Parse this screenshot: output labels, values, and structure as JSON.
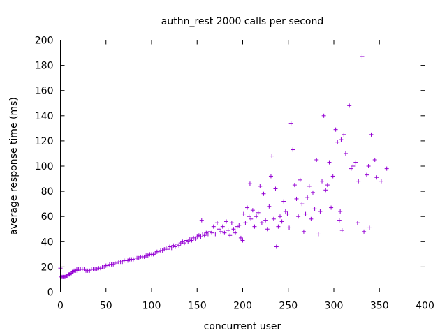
{
  "chart_data": {
    "type": "scatter",
    "title": "authn_rest 2000 calls per second",
    "xlabel": "concurrent user",
    "ylabel": "average response time (ms)",
    "xlim": [
      0,
      400
    ],
    "ylim": [
      0,
      200
    ],
    "xticks": [
      0,
      50,
      100,
      150,
      200,
      250,
      300,
      350,
      400
    ],
    "yticks": [
      0,
      20,
      40,
      60,
      80,
      100,
      120,
      140,
      160,
      180,
      200
    ],
    "grid": false,
    "marker": "+",
    "color": "#9400d3",
    "series": [
      {
        "points": [
          [
            0,
            19
          ],
          [
            1,
            12
          ],
          [
            2,
            12
          ],
          [
            3,
            12
          ],
          [
            4,
            12
          ],
          [
            5,
            12
          ],
          [
            6,
            13
          ],
          [
            7,
            13
          ],
          [
            8,
            13
          ],
          [
            9,
            14
          ],
          [
            10,
            14
          ],
          [
            11,
            15
          ],
          [
            12,
            15
          ],
          [
            13,
            16
          ],
          [
            14,
            16
          ],
          [
            15,
            17
          ],
          [
            16,
            17
          ],
          [
            17,
            17
          ],
          [
            18,
            18
          ],
          [
            19,
            17
          ],
          [
            20,
            18
          ],
          [
            22,
            18
          ],
          [
            24,
            18
          ],
          [
            26,
            18
          ],
          [
            28,
            17
          ],
          [
            30,
            17
          ],
          [
            32,
            17
          ],
          [
            34,
            18
          ],
          [
            36,
            18
          ],
          [
            38,
            18
          ],
          [
            40,
            18
          ],
          [
            42,
            19
          ],
          [
            44,
            19
          ],
          [
            46,
            20
          ],
          [
            48,
            20
          ],
          [
            50,
            21
          ],
          [
            52,
            21
          ],
          [
            54,
            22
          ],
          [
            56,
            22
          ],
          [
            58,
            22
          ],
          [
            60,
            23
          ],
          [
            62,
            23
          ],
          [
            64,
            24
          ],
          [
            66,
            24
          ],
          [
            68,
            24
          ],
          [
            70,
            25
          ],
          [
            72,
            25
          ],
          [
            74,
            25
          ],
          [
            76,
            26
          ],
          [
            78,
            26
          ],
          [
            80,
            26
          ],
          [
            82,
            27
          ],
          [
            84,
            27
          ],
          [
            86,
            27
          ],
          [
            88,
            28
          ],
          [
            90,
            28
          ],
          [
            92,
            28
          ],
          [
            94,
            29
          ],
          [
            96,
            29
          ],
          [
            98,
            30
          ],
          [
            100,
            30
          ],
          [
            102,
            30
          ],
          [
            104,
            31
          ],
          [
            106,
            32
          ],
          [
            108,
            32
          ],
          [
            110,
            33
          ],
          [
            112,
            33
          ],
          [
            114,
            34
          ],
          [
            116,
            35
          ],
          [
            118,
            34
          ],
          [
            120,
            36
          ],
          [
            122,
            35
          ],
          [
            124,
            37
          ],
          [
            126,
            36
          ],
          [
            128,
            38
          ],
          [
            130,
            37
          ],
          [
            132,
            39
          ],
          [
            134,
            40
          ],
          [
            136,
            39
          ],
          [
            138,
            41
          ],
          [
            140,
            40
          ],
          [
            142,
            42
          ],
          [
            144,
            41
          ],
          [
            146,
            43
          ],
          [
            148,
            42
          ],
          [
            150,
            44
          ],
          [
            152,
            45
          ],
          [
            154,
            44
          ],
          [
            155,
            57
          ],
          [
            156,
            46
          ],
          [
            158,
            45
          ],
          [
            160,
            47
          ],
          [
            162,
            46
          ],
          [
            164,
            48
          ],
          [
            166,
            47
          ],
          [
            168,
            52
          ],
          [
            170,
            46
          ],
          [
            172,
            55
          ],
          [
            174,
            50
          ],
          [
            176,
            48
          ],
          [
            178,
            52
          ],
          [
            180,
            47
          ],
          [
            182,
            56
          ],
          [
            184,
            49
          ],
          [
            186,
            45
          ],
          [
            188,
            55
          ],
          [
            190,
            50
          ],
          [
            192,
            47
          ],
          [
            194,
            52
          ],
          [
            196,
            53
          ],
          [
            198,
            43
          ],
          [
            200,
            41
          ],
          [
            201,
            62
          ],
          [
            203,
            55
          ],
          [
            205,
            67
          ],
          [
            207,
            60
          ],
          [
            208,
            86
          ],
          [
            209,
            58
          ],
          [
            211,
            65
          ],
          [
            213,
            52
          ],
          [
            215,
            60
          ],
          [
            217,
            63
          ],
          [
            219,
            84
          ],
          [
            221,
            55
          ],
          [
            223,
            78
          ],
          [
            225,
            57
          ],
          [
            227,
            50
          ],
          [
            229,
            68
          ],
          [
            231,
            92
          ],
          [
            232,
            108
          ],
          [
            234,
            58
          ],
          [
            236,
            82
          ],
          [
            237,
            36
          ],
          [
            239,
            52
          ],
          [
            241,
            60
          ],
          [
            243,
            56
          ],
          [
            245,
            72
          ],
          [
            247,
            64
          ],
          [
            249,
            62
          ],
          [
            251,
            51
          ],
          [
            253,
            134
          ],
          [
            255,
            113
          ],
          [
            257,
            85
          ],
          [
            259,
            74
          ],
          [
            261,
            60
          ],
          [
            263,
            89
          ],
          [
            265,
            70
          ],
          [
            267,
            48
          ],
          [
            269,
            62
          ],
          [
            271,
            75
          ],
          [
            273,
            84
          ],
          [
            275,
            58
          ],
          [
            277,
            79
          ],
          [
            279,
            66
          ],
          [
            281,
            105
          ],
          [
            283,
            46
          ],
          [
            285,
            64
          ],
          [
            287,
            88
          ],
          [
            289,
            140
          ],
          [
            291,
            81
          ],
          [
            293,
            85
          ],
          [
            295,
            103
          ],
          [
            297,
            67
          ],
          [
            299,
            92
          ],
          [
            302,
            129
          ],
          [
            304,
            119
          ],
          [
            306,
            57
          ],
          [
            307,
            64
          ],
          [
            308,
            121
          ],
          [
            309,
            49
          ],
          [
            311,
            125
          ],
          [
            313,
            110
          ],
          [
            317,
            148
          ],
          [
            319,
            98
          ],
          [
            321,
            100
          ],
          [
            324,
            103
          ],
          [
            326,
            55
          ],
          [
            327,
            88
          ],
          [
            331,
            187
          ],
          [
            333,
            48
          ],
          [
            336,
            93
          ],
          [
            338,
            100
          ],
          [
            339,
            51
          ],
          [
            341,
            125
          ],
          [
            345,
            105
          ],
          [
            347,
            91
          ],
          [
            352,
            88
          ],
          [
            358,
            98
          ]
        ]
      }
    ]
  }
}
